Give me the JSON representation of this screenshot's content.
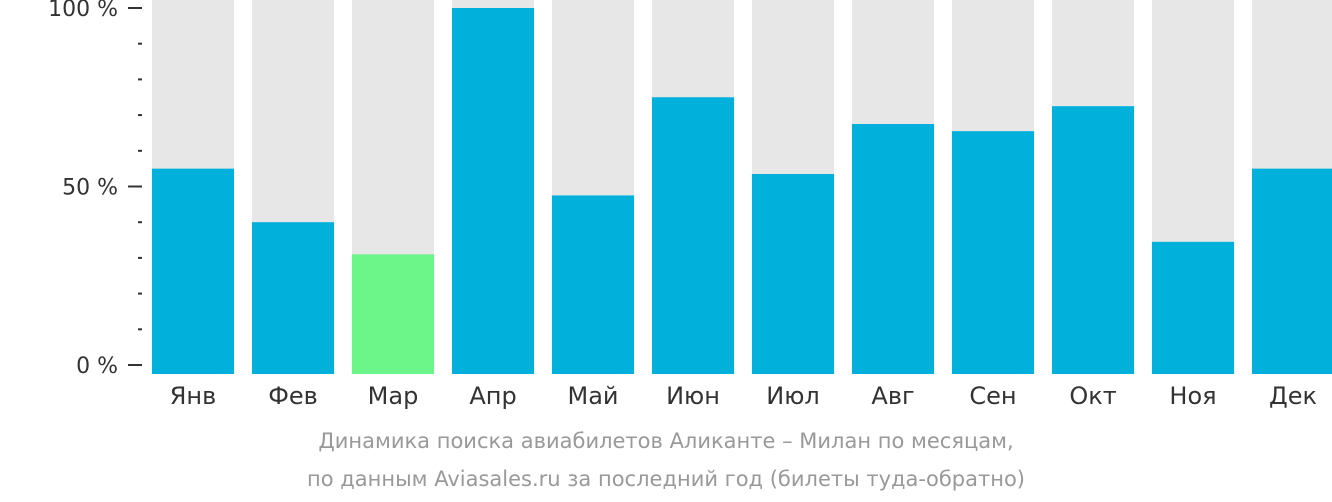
{
  "chart_data": {
    "type": "bar",
    "categories": [
      "Янв",
      "Фев",
      "Мар",
      "Апр",
      "Май",
      "Июн",
      "Июл",
      "Авг",
      "Сен",
      "Окт",
      "Ноя",
      "Дек"
    ],
    "values": [
      55,
      40,
      31,
      100,
      47.5,
      75,
      53.5,
      67.5,
      65.5,
      72.5,
      34.5,
      55
    ],
    "y_ticks": [
      {
        "value": 100,
        "label": "100 %"
      },
      {
        "value": 50,
        "label": "50 %"
      },
      {
        "value": 0,
        "label": "0 %"
      }
    ],
    "ylim": [
      0,
      100
    ],
    "highlight_index": 2,
    "colors": {
      "bar": "#02b0dc",
      "highlight": "#6cf589",
      "track": "#e7e7e7",
      "axis": "#333333"
    },
    "title": "",
    "xlabel": "",
    "ylabel": ""
  },
  "caption": {
    "line1": "Динамика поиска авиабилетов Аликанте – Милан по месяцам,",
    "line2": "по данным Aviasales.ru за последний год (билеты туда-обратно)"
  }
}
